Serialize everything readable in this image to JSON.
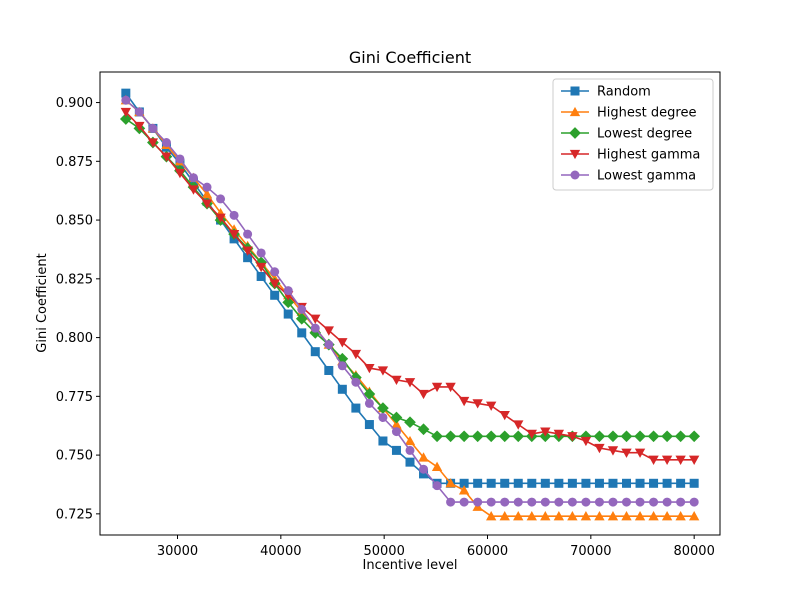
{
  "chart_data": {
    "type": "line",
    "title": "Gini Coefficient",
    "xlabel": "Incentive level",
    "ylabel": "Gini Coefficient",
    "xlim": [
      22500,
      82500
    ],
    "ylim": [
      0.716,
      0.913
    ],
    "xticks": [
      30000,
      40000,
      50000,
      60000,
      70000,
      80000
    ],
    "yticks": [
      0.725,
      0.75,
      0.775,
      0.8,
      0.825,
      0.85,
      0.875,
      0.9
    ],
    "xtick_labels": [
      "30000",
      "40000",
      "50000",
      "60000",
      "70000",
      "80000"
    ],
    "ytick_labels": [
      "0.725",
      "0.750",
      "0.775",
      "0.800",
      "0.825",
      "0.850",
      "0.875",
      "0.900"
    ],
    "grid": false,
    "legend_position": "top-right",
    "x": [
      25000,
      26310,
      27619,
      28929,
      30238,
      31548,
      32857,
      34167,
      35476,
      36786,
      38095,
      39405,
      40714,
      42024,
      43333,
      44643,
      45952,
      47262,
      48571,
      49881,
      51190,
      52500,
      53810,
      55119,
      56429,
      57738,
      59048,
      60357,
      61667,
      62976,
      64286,
      65595,
      66905,
      68214,
      69524,
      70833,
      72143,
      73452,
      74762,
      76071,
      77381,
      78690,
      80000
    ],
    "series": [
      {
        "name": "Random",
        "color": "#1f77b4",
        "marker": "square",
        "values": [
          0.904,
          0.896,
          0.889,
          0.881,
          0.874,
          0.866,
          0.858,
          0.85,
          0.842,
          0.834,
          0.826,
          0.818,
          0.81,
          0.802,
          0.794,
          0.786,
          0.778,
          0.77,
          0.763,
          0.756,
          0.752,
          0.747,
          0.742,
          0.738,
          0.738,
          0.738,
          0.738,
          0.738,
          0.738,
          0.738,
          0.738,
          0.738,
          0.738,
          0.738,
          0.738,
          0.738,
          0.738,
          0.738,
          0.738,
          0.738,
          0.738,
          0.738,
          0.738
        ],
        "x": [
          25000,
          26310,
          27619,
          28929,
          30238,
          31548,
          32857,
          34167,
          35476,
          36786,
          38095,
          39405,
          40714,
          42024,
          43333,
          44643,
          45952,
          47262,
          48571,
          49881,
          51190,
          52500,
          53810,
          55119,
          56429,
          57738,
          59048,
          60357,
          61667,
          62976,
          64286,
          65595,
          66905,
          68214,
          69524,
          70833,
          72143,
          73452,
          74762,
          76071,
          77381,
          78690,
          80000
        ]
      },
      {
        "name": "Highest degree",
        "color": "#ff7f0e",
        "marker": "triangle-up",
        "values": [
          0.901,
          0.896,
          0.889,
          0.882,
          0.875,
          0.868,
          0.861,
          0.853,
          0.846,
          0.839,
          0.832,
          0.825,
          0.818,
          0.811,
          0.804,
          0.797,
          0.79,
          0.784,
          0.777,
          0.77,
          0.763,
          0.756,
          0.749,
          0.745,
          0.738,
          0.735,
          0.728,
          0.724,
          0.724,
          0.724,
          0.724,
          0.724,
          0.724,
          0.724,
          0.724,
          0.724,
          0.724,
          0.724,
          0.724,
          0.724,
          0.724,
          0.724,
          0.724
        ],
        "x": [
          25000,
          26310,
          27619,
          28929,
          30238,
          31548,
          32857,
          34167,
          35476,
          36786,
          38095,
          39405,
          40714,
          42024,
          43333,
          44643,
          45952,
          47262,
          48571,
          49881,
          51190,
          52500,
          53810,
          55119,
          56429,
          57738,
          59048,
          60357,
          61667,
          62976,
          64286,
          65595,
          66905,
          68214,
          69524,
          70833,
          72143,
          73452,
          74762,
          76071,
          77381,
          78690,
          80000
        ]
      },
      {
        "name": "Lowest degree",
        "color": "#2ca02c",
        "marker": "diamond",
        "values": [
          0.893,
          0.889,
          0.883,
          0.877,
          0.871,
          0.864,
          0.857,
          0.85,
          0.844,
          0.838,
          0.832,
          0.823,
          0.815,
          0.808,
          0.802,
          0.797,
          0.791,
          0.783,
          0.776,
          0.77,
          0.766,
          0.764,
          0.761,
          0.758,
          0.758,
          0.758,
          0.758,
          0.758,
          0.758,
          0.758,
          0.758,
          0.758,
          0.758,
          0.758,
          0.758,
          0.758,
          0.758,
          0.758,
          0.758,
          0.758,
          0.758,
          0.758,
          0.758
        ],
        "x": [
          25000,
          26310,
          27619,
          28929,
          30238,
          31548,
          32857,
          34167,
          35476,
          36786,
          38095,
          39405,
          40714,
          42024,
          43333,
          44643,
          45952,
          47262,
          48571,
          49881,
          51190,
          52500,
          53810,
          55119,
          56429,
          57738,
          59048,
          60357,
          61667,
          62976,
          64286,
          65595,
          66905,
          68214,
          69524,
          70833,
          72143,
          73452,
          74762,
          76071,
          77381,
          78690,
          80000
        ]
      },
      {
        "name": "Highest gamma",
        "color": "#d62728",
        "marker": "triangle-down",
        "values": [
          0.896,
          0.89,
          0.883,
          0.877,
          0.87,
          0.863,
          0.857,
          0.851,
          0.844,
          0.837,
          0.83,
          0.823,
          0.818,
          0.813,
          0.808,
          0.803,
          0.798,
          0.793,
          0.787,
          0.786,
          0.782,
          0.781,
          0.776,
          0.779,
          0.779,
          0.773,
          0.772,
          0.771,
          0.767,
          0.763,
          0.759,
          0.76,
          0.759,
          0.758,
          0.756,
          0.753,
          0.752,
          0.751,
          0.751,
          0.748,
          0.748,
          0.748,
          0.748
        ],
        "x": [
          25000,
          26310,
          27619,
          28929,
          30238,
          31548,
          32857,
          34167,
          35476,
          36786,
          38095,
          39405,
          40714,
          42024,
          43333,
          44643,
          45952,
          47262,
          48571,
          49881,
          51190,
          52500,
          53810,
          55119,
          56429,
          57738,
          59048,
          60357,
          61667,
          62976,
          64286,
          65595,
          66905,
          68214,
          69524,
          70833,
          72143,
          73452,
          74762,
          76071,
          77381,
          78690,
          80000
        ]
      },
      {
        "name": "Lowest gamma",
        "color": "#9467bd",
        "marker": "circle",
        "values": [
          0.901,
          0.896,
          0.889,
          0.883,
          0.876,
          0.868,
          0.864,
          0.859,
          0.852,
          0.844,
          0.836,
          0.828,
          0.82,
          0.812,
          0.804,
          0.797,
          0.788,
          0.781,
          0.772,
          0.766,
          0.76,
          0.752,
          0.744,
          0.737,
          0.73,
          0.73,
          0.73,
          0.73,
          0.73,
          0.73,
          0.73,
          0.73,
          0.73,
          0.73,
          0.73,
          0.73,
          0.73,
          0.73,
          0.73,
          0.73,
          0.73,
          0.73,
          0.73
        ],
        "x": [
          25000,
          26310,
          27619,
          28929,
          30238,
          31548,
          32857,
          34167,
          35476,
          36786,
          38095,
          39405,
          40714,
          42024,
          43333,
          44643,
          45952,
          47262,
          48571,
          49881,
          51190,
          52500,
          53810,
          55119,
          56429,
          57738,
          59048,
          60357,
          61667,
          62976,
          64286,
          65595,
          66905,
          68214,
          69524,
          70833,
          72143,
          73452,
          74762,
          76071,
          77381,
          78690,
          80000
        ]
      }
    ]
  }
}
